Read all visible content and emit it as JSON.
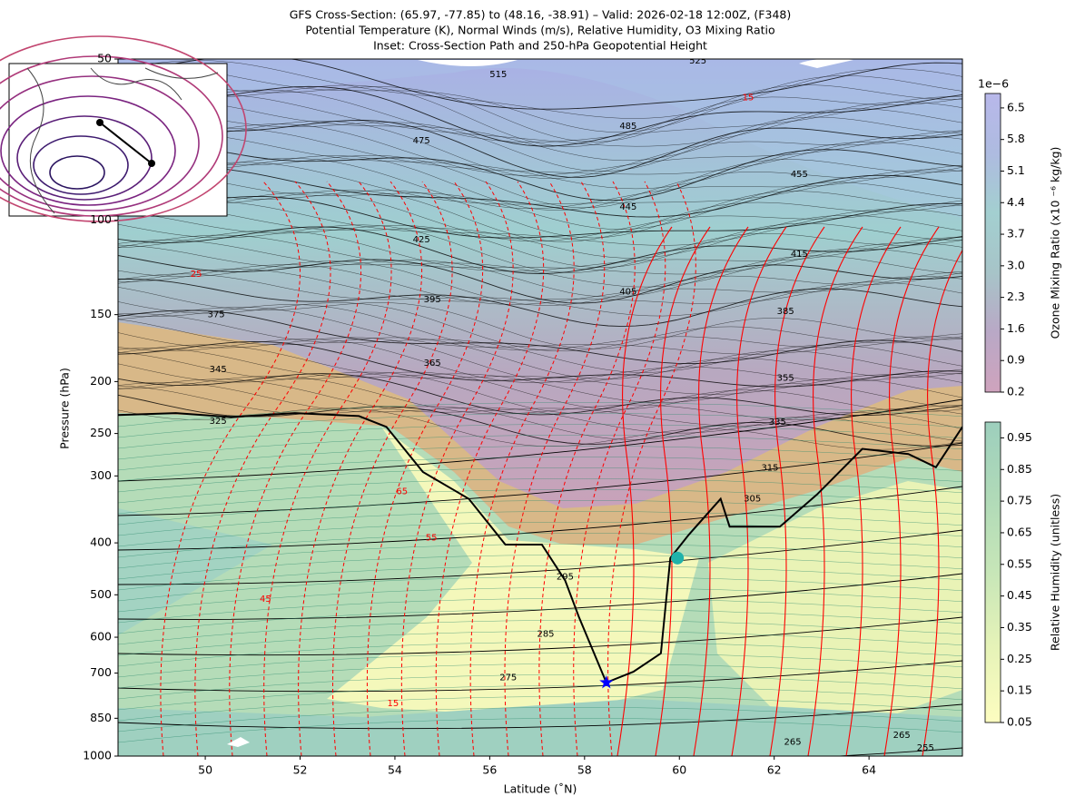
{
  "chart_data": {
    "type": "cross-section",
    "title": [
      "GFS Cross-Section: (65.97, -77.85) to (48.16, -38.91) – Valid: 2026-02-18 12:00Z, (F348)",
      "Potential Temperature (K), Normal Winds (m/s), Relative Humidity, O3 Mixing Ratio",
      "Inset: Cross-Section Path and 250-hPa Geopotential Height"
    ],
    "xlabel": "Latitude (˚N)",
    "ylabel": "Pressure (hPa)",
    "xlim": [
      48.16,
      65.97
    ],
    "xticks": [
      50,
      52,
      54,
      56,
      58,
      60,
      62,
      64
    ],
    "ylim": [
      1000,
      50
    ],
    "yticks": [
      50,
      100,
      150,
      200,
      250,
      300,
      400,
      500,
      600,
      700,
      850,
      1000
    ],
    "ylog": true,
    "lines": [
      {
        "color": "#000000",
        "x": [
          48.16,
          49.38,
          50.54,
          51.89,
          53.24,
          53.82,
          54.59,
          55.56,
          56.33,
          57.1,
          57.59,
          57.88,
          58.46,
          59.03,
          59.61,
          59.81,
          60.19,
          60.87,
          61.06,
          62.12,
          62.9,
          63.86,
          64.83,
          65.41,
          65.97
        ],
        "y": [
          231,
          229,
          233,
          229,
          232,
          243,
          295,
          331,
          403,
          403,
          470,
          550,
          729,
          696,
          643,
          427,
          387,
          331,
          373,
          373,
          325,
          267,
          273,
          289,
          243
        ]
      }
    ],
    "points": [
      {
        "marker": "star",
        "color": "#0000ff",
        "x": 58.46,
        "y": 729
      },
      {
        "marker": "circle",
        "color": "#20b2aa",
        "x": 59.96,
        "y": 427
      }
    ],
    "annotations": [
      {
        "text": "525",
        "x": 60.39,
        "y": 50.4,
        "color": "#000000"
      },
      {
        "text": "515",
        "x": 56.18,
        "y": 53.4,
        "color": "#000000"
      },
      {
        "text": "485",
        "x": 58.92,
        "y": 66.7,
        "color": "#000000"
      },
      {
        "text": "475",
        "x": 54.56,
        "y": 71,
        "color": "#000000"
      },
      {
        "text": "455",
        "x": 62.53,
        "y": 82,
        "color": "#000000"
      },
      {
        "text": "445",
        "x": 58.92,
        "y": 94.5,
        "color": "#000000"
      },
      {
        "text": "425",
        "x": 54.56,
        "y": 108.7,
        "color": "#000000"
      },
      {
        "text": "415",
        "x": 62.53,
        "y": 115.7,
        "color": "#000000"
      },
      {
        "text": "405",
        "x": 58.92,
        "y": 136,
        "color": "#000000"
      },
      {
        "text": "395",
        "x": 54.79,
        "y": 140.6,
        "color": "#000000"
      },
      {
        "text": "385",
        "x": 62.24,
        "y": 148,
        "color": "#000000"
      },
      {
        "text": "375",
        "x": 50.23,
        "y": 150,
        "color": "#000000"
      },
      {
        "text": "365",
        "x": 54.79,
        "y": 184.8,
        "color": "#000000"
      },
      {
        "text": "345",
        "x": 50.27,
        "y": 190,
        "color": "#000000"
      },
      {
        "text": "355",
        "x": 62.24,
        "y": 197,
        "color": "#000000"
      },
      {
        "text": "335",
        "x": 62.07,
        "y": 238,
        "color": "#000000"
      },
      {
        "text": "325",
        "x": 50.27,
        "y": 237,
        "color": "#000000"
      },
      {
        "text": "315",
        "x": 61.91,
        "y": 290,
        "color": "#000000"
      },
      {
        "text": "305",
        "x": 61.54,
        "y": 331,
        "color": "#000000"
      },
      {
        "text": "295",
        "x": 57.59,
        "y": 463,
        "color": "#000000"
      },
      {
        "text": "285",
        "x": 57.18,
        "y": 592,
        "color": "#000000"
      },
      {
        "text": "275",
        "x": 56.39,
        "y": 713,
        "color": "#000000"
      },
      {
        "text": "265",
        "x": 62.39,
        "y": 942,
        "color": "#000000"
      },
      {
        "text": "265",
        "x": 64.69,
        "y": 914,
        "color": "#000000"
      },
      {
        "text": "255",
        "x": 65.19,
        "y": 965,
        "color": "#000000"
      },
      {
        "text": "15",
        "x": 61.45,
        "y": 59,
        "color": "#ff0000"
      },
      {
        "text": "25",
        "x": 49.81,
        "y": 126,
        "color": "#ff0000"
      },
      {
        "text": "65",
        "x": 54.15,
        "y": 321,
        "color": "#ff0000"
      },
      {
        "text": "55",
        "x": 54.77,
        "y": 391,
        "color": "#ff0000"
      },
      {
        "text": "45",
        "x": 51.27,
        "y": 509,
        "color": "#ff0000"
      },
      {
        "text": "15",
        "x": 53.96,
        "y": 798,
        "color": "#ff0000"
      }
    ],
    "colorbars": [
      {
        "label": "Ozone Mixing Ratio (x10 ⁻⁶ kg/kg)",
        "offset_label": "1e−6",
        "lim": [
          0.2,
          6.82
        ],
        "ticks": [
          0.2,
          0.9,
          1.6,
          2.3,
          3.0,
          3.7,
          4.4,
          5.1,
          5.8,
          6.5
        ],
        "colors": [
          "#cfa3bd",
          "#b9a8c6",
          "#a7c4c8",
          "#a3cfd0",
          "#aebbe0",
          "#b8b8ea"
        ]
      },
      {
        "label": "Relative Humidity (unitless)",
        "lim": [
          0.05,
          1.0
        ],
        "ticks": [
          0.05,
          0.15,
          0.25,
          0.35,
          0.45,
          0.55,
          0.65,
          0.75,
          0.85,
          0.95
        ],
        "colors": [
          "#fdfdc0",
          "#e6f3b8",
          "#c7e6b8",
          "#b0dab8",
          "#9dcfbd"
        ]
      }
    ]
  }
}
